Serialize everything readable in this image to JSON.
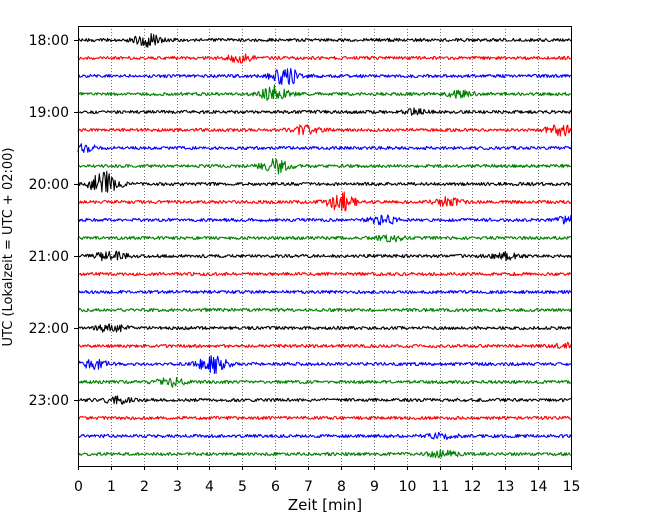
{
  "chart_data": {
    "type": "line",
    "xlabel": "Zeit  [min]",
    "ylabel": "UTC (Lokalzeit = UTC + 02:00)",
    "xlim": [
      0,
      15
    ],
    "x_ticks": [
      "0",
      "1",
      "2",
      "3",
      "4",
      "5",
      "6",
      "7",
      "8",
      "9",
      "10",
      "11",
      "12",
      "13",
      "14",
      "15"
    ],
    "y_ticks": [
      "18:00",
      "19:00",
      "20:00",
      "21:00",
      "22:00",
      "23:00"
    ],
    "trace_interval_min": 15,
    "start_time": "18:00",
    "trace_count": 24,
    "vertical_grid": "dotted",
    "colors": [
      "#000000",
      "#ff0000",
      "#0000ff",
      "#008000"
    ],
    "events": [
      {
        "trace": 0,
        "x": 2.1,
        "amp": 7
      },
      {
        "trace": 1,
        "x": 4.9,
        "amp": 3.5
      },
      {
        "trace": 2,
        "x": 6.3,
        "amp": 9
      },
      {
        "trace": 3,
        "x": 6.0,
        "amp": 8
      },
      {
        "trace": 3,
        "x": 11.6,
        "amp": 3
      },
      {
        "trace": 4,
        "x": 10.2,
        "amp": 2.5
      },
      {
        "trace": 5,
        "x": 6.9,
        "amp": 4
      },
      {
        "trace": 5,
        "x": 14.7,
        "amp": 5
      },
      {
        "trace": 6,
        "x": 0.1,
        "amp": 4
      },
      {
        "trace": 7,
        "x": 6.0,
        "amp": 7
      },
      {
        "trace": 8,
        "x": 0.8,
        "amp": 12
      },
      {
        "trace": 9,
        "x": 8.0,
        "amp": 9
      },
      {
        "trace": 9,
        "x": 11.2,
        "amp": 4
      },
      {
        "trace": 10,
        "x": 9.3,
        "amp": 4
      },
      {
        "trace": 10,
        "x": 15.0,
        "amp": 4
      },
      {
        "trace": 11,
        "x": 9.5,
        "amp": 3
      },
      {
        "trace": 12,
        "x": 1.0,
        "amp": 5
      },
      {
        "trace": 12,
        "x": 13.0,
        "amp": 3
      },
      {
        "trace": 16,
        "x": 1.0,
        "amp": 4
      },
      {
        "trace": 17,
        "x": 15.0,
        "amp": 3
      },
      {
        "trace": 18,
        "x": 0.5,
        "amp": 4
      },
      {
        "trace": 18,
        "x": 4.1,
        "amp": 9
      },
      {
        "trace": 19,
        "x": 2.8,
        "amp": 4
      },
      {
        "trace": 20,
        "x": 1.2,
        "amp": 3
      },
      {
        "trace": 22,
        "x": 11.1,
        "amp": 2.5
      },
      {
        "trace": 23,
        "x": 11.1,
        "amp": 3
      }
    ]
  }
}
